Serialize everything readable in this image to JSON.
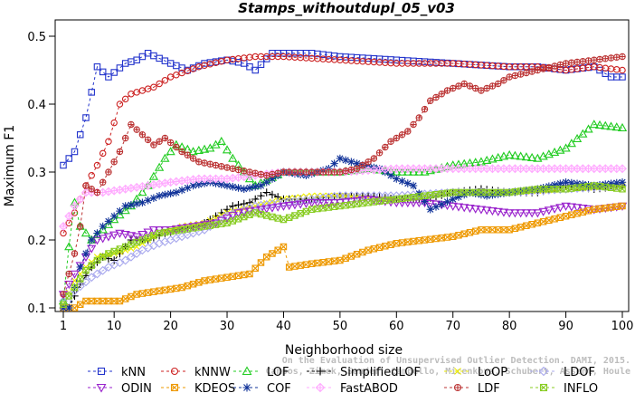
{
  "chart_data": {
    "type": "line",
    "title": "Stamps_withoutdupl_05_v03",
    "xlabel": "Neighborhood size",
    "ylabel": "Maximum F1",
    "xlim": [
      1,
      100
    ],
    "ylim": [
      0.1,
      0.5
    ],
    "xticks": [
      1,
      10,
      20,
      30,
      40,
      50,
      60,
      70,
      80,
      90,
      100
    ],
    "yticks": [
      0.1,
      0.2,
      0.3,
      0.4,
      0.5
    ],
    "grid": false,
    "legend_position": "bottom",
    "watermark": [
      "Campos, Zimek, Sander, Campello, Micenkova, Schubert, Assent, Houle",
      "On the Evaluation of Unsupervised Outlier Detection. DAMI, 2015."
    ],
    "series": [
      {
        "name": "kNN",
        "color": "#2233cc",
        "marker": "square",
        "points": [
          [
            1,
            0.31
          ],
          [
            3,
            0.33
          ],
          [
            5,
            0.38
          ],
          [
            7,
            0.455
          ],
          [
            9,
            0.44
          ],
          [
            12,
            0.46
          ],
          [
            14,
            0.465
          ],
          [
            16,
            0.475
          ],
          [
            20,
            0.46
          ],
          [
            23,
            0.45
          ],
          [
            26,
            0.46
          ],
          [
            30,
            0.465
          ],
          [
            33,
            0.46
          ],
          [
            35,
            0.45
          ],
          [
            38,
            0.475
          ],
          [
            45,
            0.475
          ],
          [
            50,
            0.47
          ],
          [
            60,
            0.465
          ],
          [
            70,
            0.46
          ],
          [
            80,
            0.455
          ],
          [
            85,
            0.455
          ],
          [
            90,
            0.45
          ],
          [
            95,
            0.455
          ],
          [
            98,
            0.44
          ],
          [
            100,
            0.44
          ]
        ]
      },
      {
        "name": "kNNW",
        "color": "#cc2222",
        "marker": "circle",
        "points": [
          [
            1,
            0.21
          ],
          [
            3,
            0.24
          ],
          [
            5,
            0.28
          ],
          [
            7,
            0.31
          ],
          [
            9,
            0.345
          ],
          [
            11,
            0.4
          ],
          [
            13,
            0.415
          ],
          [
            17,
            0.425
          ],
          [
            20,
            0.44
          ],
          [
            25,
            0.455
          ],
          [
            30,
            0.465
          ],
          [
            35,
            0.47
          ],
          [
            40,
            0.47
          ],
          [
            50,
            0.465
          ],
          [
            60,
            0.46
          ],
          [
            70,
            0.46
          ],
          [
            80,
            0.455
          ],
          [
            85,
            0.455
          ],
          [
            90,
            0.45
          ],
          [
            95,
            0.455
          ],
          [
            100,
            0.45
          ]
        ]
      },
      {
        "name": "LOF",
        "color": "#22cc22",
        "marker": "triangle-up",
        "points": [
          [
            1,
            0.11
          ],
          [
            2,
            0.19
          ],
          [
            3,
            0.255
          ],
          [
            4,
            0.22
          ],
          [
            6,
            0.2
          ],
          [
            8,
            0.215
          ],
          [
            10,
            0.23
          ],
          [
            13,
            0.25
          ],
          [
            16,
            0.28
          ],
          [
            19,
            0.32
          ],
          [
            21,
            0.34
          ],
          [
            24,
            0.33
          ],
          [
            27,
            0.335
          ],
          [
            29,
            0.345
          ],
          [
            31,
            0.32
          ],
          [
            35,
            0.28
          ],
          [
            40,
            0.3
          ],
          [
            45,
            0.3
          ],
          [
            50,
            0.3
          ],
          [
            55,
            0.305
          ],
          [
            60,
            0.3
          ],
          [
            65,
            0.3
          ],
          [
            70,
            0.31
          ],
          [
            75,
            0.315
          ],
          [
            80,
            0.325
          ],
          [
            85,
            0.32
          ],
          [
            90,
            0.335
          ],
          [
            95,
            0.37
          ],
          [
            100,
            0.365
          ]
        ]
      },
      {
        "name": "SimplifiedLOF",
        "color": "#000000",
        "marker": "plus",
        "points": [
          [
            1,
            0.1
          ],
          [
            2,
            0.1
          ],
          [
            4,
            0.135
          ],
          [
            6,
            0.16
          ],
          [
            8,
            0.175
          ],
          [
            10,
            0.17
          ],
          [
            13,
            0.2
          ],
          [
            16,
            0.2
          ],
          [
            19,
            0.21
          ],
          [
            22,
            0.215
          ],
          [
            25,
            0.22
          ],
          [
            28,
            0.235
          ],
          [
            31,
            0.25
          ],
          [
            34,
            0.255
          ],
          [
            37,
            0.27
          ],
          [
            40,
            0.26
          ],
          [
            45,
            0.26
          ],
          [
            50,
            0.265
          ],
          [
            55,
            0.265
          ],
          [
            60,
            0.26
          ],
          [
            65,
            0.26
          ],
          [
            70,
            0.27
          ],
          [
            75,
            0.275
          ],
          [
            80,
            0.27
          ],
          [
            85,
            0.27
          ],
          [
            90,
            0.28
          ],
          [
            95,
            0.275
          ],
          [
            100,
            0.28
          ]
        ]
      },
      {
        "name": "LoOP",
        "color": "#eeee00",
        "marker": "cross",
        "points": [
          [
            1,
            0.105
          ],
          [
            3,
            0.14
          ],
          [
            5,
            0.16
          ],
          [
            7,
            0.175
          ],
          [
            10,
            0.18
          ],
          [
            14,
            0.19
          ],
          [
            18,
            0.21
          ],
          [
            22,
            0.22
          ],
          [
            26,
            0.225
          ],
          [
            30,
            0.24
          ],
          [
            35,
            0.25
          ],
          [
            40,
            0.26
          ],
          [
            45,
            0.265
          ],
          [
            50,
            0.265
          ],
          [
            60,
            0.26
          ],
          [
            70,
            0.27
          ],
          [
            80,
            0.27
          ],
          [
            90,
            0.275
          ],
          [
            100,
            0.28
          ]
        ]
      },
      {
        "name": "LDOF",
        "color": "#aaaaee",
        "marker": "diamond",
        "points": [
          [
            1,
            0.11
          ],
          [
            3,
            0.125
          ],
          [
            6,
            0.145
          ],
          [
            9,
            0.16
          ],
          [
            12,
            0.17
          ],
          [
            15,
            0.185
          ],
          [
            18,
            0.195
          ],
          [
            22,
            0.205
          ],
          [
            26,
            0.215
          ],
          [
            30,
            0.235
          ],
          [
            35,
            0.25
          ],
          [
            40,
            0.255
          ],
          [
            45,
            0.26
          ],
          [
            50,
            0.265
          ],
          [
            60,
            0.265
          ],
          [
            70,
            0.27
          ],
          [
            80,
            0.27
          ],
          [
            90,
            0.275
          ],
          [
            100,
            0.28
          ]
        ]
      },
      {
        "name": "ODIN",
        "color": "#9922cc",
        "marker": "triangle-down",
        "points": [
          [
            1,
            0.12
          ],
          [
            3,
            0.15
          ],
          [
            5,
            0.175
          ],
          [
            7,
            0.2
          ],
          [
            9,
            0.205
          ],
          [
            11,
            0.21
          ],
          [
            14,
            0.205
          ],
          [
            17,
            0.215
          ],
          [
            20,
            0.215
          ],
          [
            24,
            0.22
          ],
          [
            28,
            0.225
          ],
          [
            32,
            0.24
          ],
          [
            36,
            0.245
          ],
          [
            40,
            0.25
          ],
          [
            45,
            0.255
          ],
          [
            50,
            0.255
          ],
          [
            55,
            0.26
          ],
          [
            60,
            0.255
          ],
          [
            65,
            0.255
          ],
          [
            70,
            0.25
          ],
          [
            75,
            0.245
          ],
          [
            80,
            0.24
          ],
          [
            85,
            0.24
          ],
          [
            90,
            0.25
          ],
          [
            95,
            0.245
          ],
          [
            100,
            0.25
          ]
        ]
      },
      {
        "name": "KDEOS",
        "color": "#ee9900",
        "marker": "x-square",
        "points": [
          [
            1,
            0.1
          ],
          [
            3,
            0.1
          ],
          [
            5,
            0.11
          ],
          [
            8,
            0.11
          ],
          [
            11,
            0.11
          ],
          [
            14,
            0.12
          ],
          [
            18,
            0.125
          ],
          [
            22,
            0.13
          ],
          [
            26,
            0.14
          ],
          [
            30,
            0.145
          ],
          [
            34,
            0.15
          ],
          [
            37,
            0.175
          ],
          [
            40,
            0.19
          ],
          [
            41,
            0.16
          ],
          [
            45,
            0.165
          ],
          [
            50,
            0.17
          ],
          [
            55,
            0.185
          ],
          [
            60,
            0.195
          ],
          [
            65,
            0.2
          ],
          [
            70,
            0.205
          ],
          [
            75,
            0.215
          ],
          [
            80,
            0.215
          ],
          [
            85,
            0.225
          ],
          [
            90,
            0.235
          ],
          [
            95,
            0.245
          ],
          [
            100,
            0.25
          ]
        ]
      },
      {
        "name": "COF",
        "color": "#113399",
        "marker": "asterisk",
        "points": [
          [
            1,
            0.1
          ],
          [
            2,
            0.1
          ],
          [
            4,
            0.16
          ],
          [
            6,
            0.2
          ],
          [
            8,
            0.22
          ],
          [
            10,
            0.235
          ],
          [
            12,
            0.25
          ],
          [
            15,
            0.255
          ],
          [
            18,
            0.265
          ],
          [
            21,
            0.27
          ],
          [
            24,
            0.28
          ],
          [
            27,
            0.285
          ],
          [
            30,
            0.28
          ],
          [
            33,
            0.275
          ],
          [
            36,
            0.28
          ],
          [
            40,
            0.3
          ],
          [
            44,
            0.295
          ],
          [
            48,
            0.305
          ],
          [
            50,
            0.32
          ],
          [
            54,
            0.31
          ],
          [
            57,
            0.305
          ],
          [
            60,
            0.29
          ],
          [
            63,
            0.28
          ],
          [
            66,
            0.245
          ],
          [
            70,
            0.26
          ],
          [
            73,
            0.27
          ],
          [
            76,
            0.265
          ],
          [
            80,
            0.27
          ],
          [
            85,
            0.275
          ],
          [
            90,
            0.285
          ],
          [
            95,
            0.28
          ],
          [
            100,
            0.285
          ]
        ]
      },
      {
        "name": "FastABOD",
        "color": "#ffaaff",
        "marker": "diamond-plus",
        "points": [
          [
            1,
            0.22
          ],
          [
            3,
            0.25
          ],
          [
            5,
            0.27
          ],
          [
            8,
            0.27
          ],
          [
            12,
            0.275
          ],
          [
            16,
            0.28
          ],
          [
            20,
            0.285
          ],
          [
            25,
            0.29
          ],
          [
            30,
            0.29
          ],
          [
            35,
            0.295
          ],
          [
            40,
            0.3
          ],
          [
            50,
            0.3
          ],
          [
            60,
            0.305
          ],
          [
            70,
            0.305
          ],
          [
            80,
            0.305
          ],
          [
            90,
            0.305
          ],
          [
            100,
            0.305
          ]
        ]
      },
      {
        "name": "LDF",
        "color": "#bb3333",
        "marker": "circle-plus",
        "points": [
          [
            1,
            0.12
          ],
          [
            3,
            0.18
          ],
          [
            4,
            0.22
          ],
          [
            5,
            0.28
          ],
          [
            7,
            0.27
          ],
          [
            9,
            0.3
          ],
          [
            11,
            0.33
          ],
          [
            13,
            0.37
          ],
          [
            15,
            0.355
          ],
          [
            17,
            0.34
          ],
          [
            19,
            0.35
          ],
          [
            22,
            0.33
          ],
          [
            25,
            0.315
          ],
          [
            28,
            0.31
          ],
          [
            31,
            0.305
          ],
          [
            34,
            0.3
          ],
          [
            37,
            0.295
          ],
          [
            40,
            0.3
          ],
          [
            45,
            0.3
          ],
          [
            50,
            0.3
          ],
          [
            53,
            0.305
          ],
          [
            56,
            0.32
          ],
          [
            59,
            0.345
          ],
          [
            62,
            0.36
          ],
          [
            64,
            0.38
          ],
          [
            66,
            0.405
          ],
          [
            69,
            0.42
          ],
          [
            72,
            0.43
          ],
          [
            75,
            0.42
          ],
          [
            78,
            0.43
          ],
          [
            80,
            0.44
          ],
          [
            85,
            0.45
          ],
          [
            90,
            0.46
          ],
          [
            95,
            0.465
          ],
          [
            100,
            0.47
          ]
        ]
      },
      {
        "name": "INFLO",
        "color": "#88cc22",
        "marker": "x-square",
        "points": [
          [
            1,
            0.105
          ],
          [
            3,
            0.13
          ],
          [
            5,
            0.155
          ],
          [
            7,
            0.17
          ],
          [
            9,
            0.18
          ],
          [
            12,
            0.19
          ],
          [
            15,
            0.2
          ],
          [
            18,
            0.21
          ],
          [
            22,
            0.215
          ],
          [
            26,
            0.22
          ],
          [
            30,
            0.225
          ],
          [
            35,
            0.24
          ],
          [
            40,
            0.23
          ],
          [
            45,
            0.245
          ],
          [
            50,
            0.25
          ],
          [
            55,
            0.255
          ],
          [
            60,
            0.26
          ],
          [
            65,
            0.265
          ],
          [
            70,
            0.27
          ],
          [
            75,
            0.27
          ],
          [
            80,
            0.27
          ],
          [
            85,
            0.275
          ],
          [
            90,
            0.275
          ],
          [
            95,
            0.28
          ],
          [
            100,
            0.275
          ]
        ]
      }
    ]
  }
}
